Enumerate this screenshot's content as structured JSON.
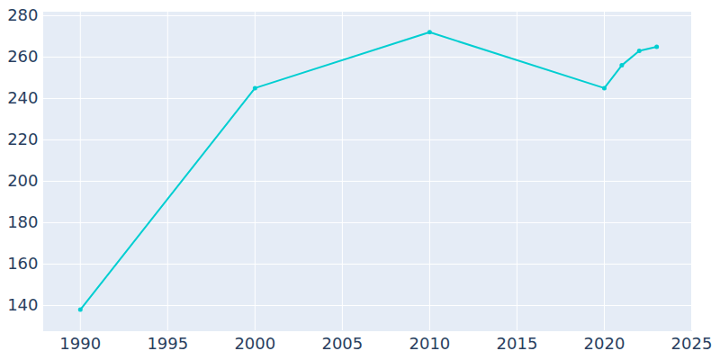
{
  "chart_data": {
    "type": "line",
    "x": [
      1990,
      2000,
      2010,
      2020,
      2021,
      2022,
      2023
    ],
    "values": [
      138,
      245,
      272,
      245,
      256,
      263,
      265
    ],
    "color": "#00ced1",
    "marker": "circle",
    "line_style": "solid",
    "xlim": [
      1987.9,
      2025
    ],
    "xticks": [
      1990,
      1995,
      2000,
      2005,
      2010,
      2015,
      2020,
      2025
    ],
    "ylim": [
      127.8,
      281.7
    ],
    "yticks": [
      140,
      160,
      180,
      200,
      220,
      240,
      260,
      280
    ],
    "grid": true
  }
}
